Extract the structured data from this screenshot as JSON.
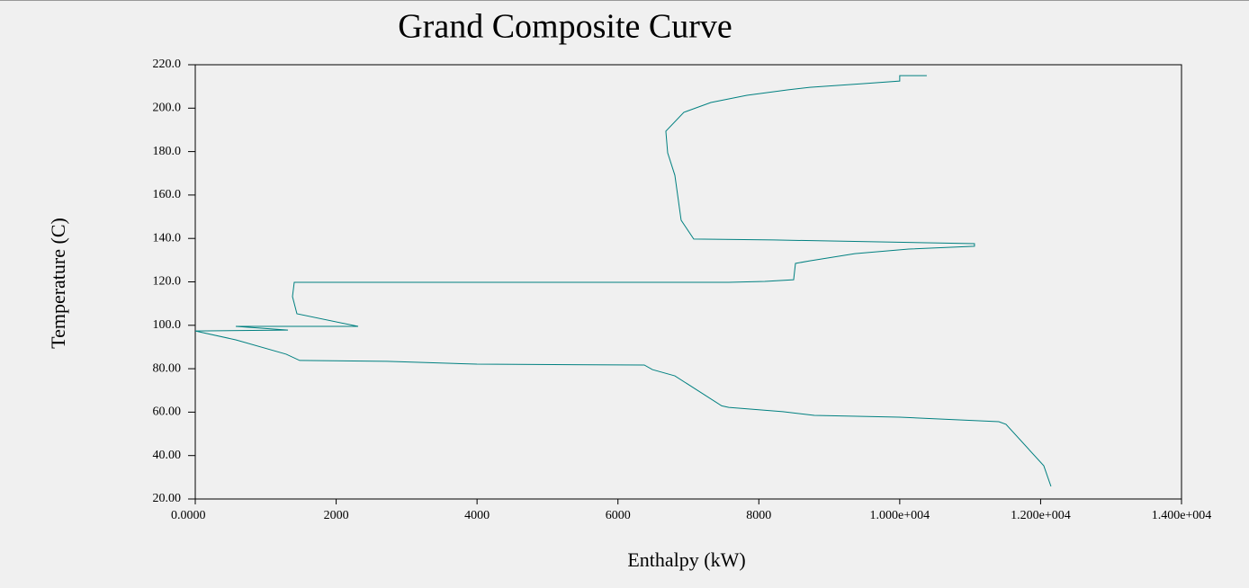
{
  "chart_data": {
    "type": "line",
    "title": "Grand Composite Curve",
    "x_label": "Enthalpy (kW)",
    "y_label": "Temperature (C)",
    "color": "#008080",
    "x": [
      10384,
      10000,
      10000,
      9490,
      8724,
      8405,
      7830,
      7319,
      6936,
      6680,
      6706,
      6808,
      6897,
      7076,
      8213,
      11061,
      11061,
      10129,
      9363,
      8724,
      8520,
      8494,
      8085,
      7574,
      1405,
      1380,
      1443,
      2312,
      575,
      1316,
      0,
      575,
      1290,
      1482,
      2721,
      3998,
      6374,
      6489,
      6808,
      7473,
      7574,
      8341,
      8788,
      10000,
      11406,
      11508,
      12045,
      12147
    ],
    "values": [
      215.0,
      215.0,
      212.5,
      211.3,
      209.6,
      208.4,
      205.9,
      202.6,
      198.1,
      189.4,
      179.4,
      169.1,
      148.4,
      139.7,
      139.3,
      137.6,
      136.4,
      135.1,
      133.0,
      129.7,
      128.5,
      121.0,
      120.2,
      119.8,
      119.8,
      113.2,
      105.3,
      99.5,
      99.5,
      97.8,
      97.4,
      93.3,
      86.7,
      83.8,
      83.4,
      82.1,
      81.7,
      79.6,
      76.7,
      62.9,
      62.2,
      60.2,
      58.5,
      57.7,
      55.6,
      54.4,
      35.3,
      25.8
    ],
    "xlim": [
      0,
      14000
    ],
    "ylim": [
      20,
      220
    ],
    "xticks": [
      {
        "value": 0,
        "label": "0.0000"
      },
      2000,
      4000,
      6000,
      8000,
      {
        "value": 10000,
        "label": "1.000e+004"
      },
      {
        "value": 12000,
        "label": "1.200e+004"
      },
      {
        "value": 14000,
        "label": "1.400e+004"
      }
    ],
    "yticks": [
      {
        "value": 220,
        "label": "220.0"
      },
      {
        "value": 200,
        "label": "200.0"
      },
      {
        "value": 180,
        "label": "180.0"
      },
      {
        "value": 160,
        "label": "160.0"
      },
      {
        "value": 140,
        "label": "140.0"
      },
      {
        "value": 120,
        "label": "120.0"
      },
      {
        "value": 100,
        "label": "100.0"
      },
      {
        "value": 80,
        "label": "80.00"
      },
      {
        "value": 60,
        "label": "60.00"
      },
      {
        "value": 40,
        "label": "40.00"
      },
      {
        "value": 20,
        "label": "20.00"
      }
    ],
    "grid": false
  }
}
